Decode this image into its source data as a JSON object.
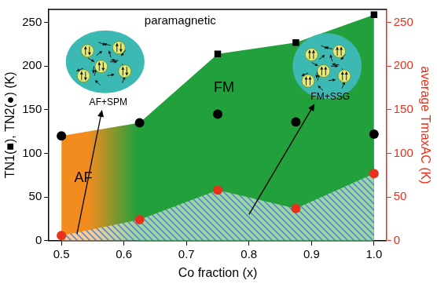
{
  "chart_data": {
    "type": "scatter",
    "xlabel": "Co fraction (x)",
    "ylabel": "TN1(■), TN2(●) (K)",
    "y2label": "average TmaxAC (K)",
    "xlim": [
      0.48,
      1.02
    ],
    "xticks": [
      0.5,
      0.6,
      0.7,
      0.8,
      0.9,
      {
        "value": 1,
        "label": "1.0"
      }
    ],
    "ylim": [
      0,
      265
    ],
    "yticks": [
      0,
      50,
      100,
      150,
      200,
      250
    ],
    "y2lim": [
      0,
      265
    ],
    "y2ticks": [
      0,
      50,
      100,
      150,
      200,
      250
    ],
    "grid": false,
    "series": [
      {
        "color": "#000000",
        "marker": "square",
        "x": [
          0.625,
          0.75,
          0.875,
          1.0
        ],
        "values": [
          135,
          214,
          227,
          259
        ]
      },
      {
        "color": "#000000",
        "marker": "circle",
        "x": [
          0.5,
          0.625,
          0.75,
          0.875,
          1.0
        ],
        "values": [
          120,
          135,
          145,
          136,
          122
        ]
      },
      {
        "color": "#e8311c",
        "marker": "circle",
        "axis": "y2",
        "x": [
          0.5,
          0.625,
          0.75,
          0.875,
          1.0
        ],
        "values": [
          6,
          24,
          58,
          37,
          77
        ]
      }
    ],
    "annotations": [
      "paramagnetic",
      "AF",
      "FM",
      "AF+SPM",
      "FM+SSG"
    ]
  }
}
